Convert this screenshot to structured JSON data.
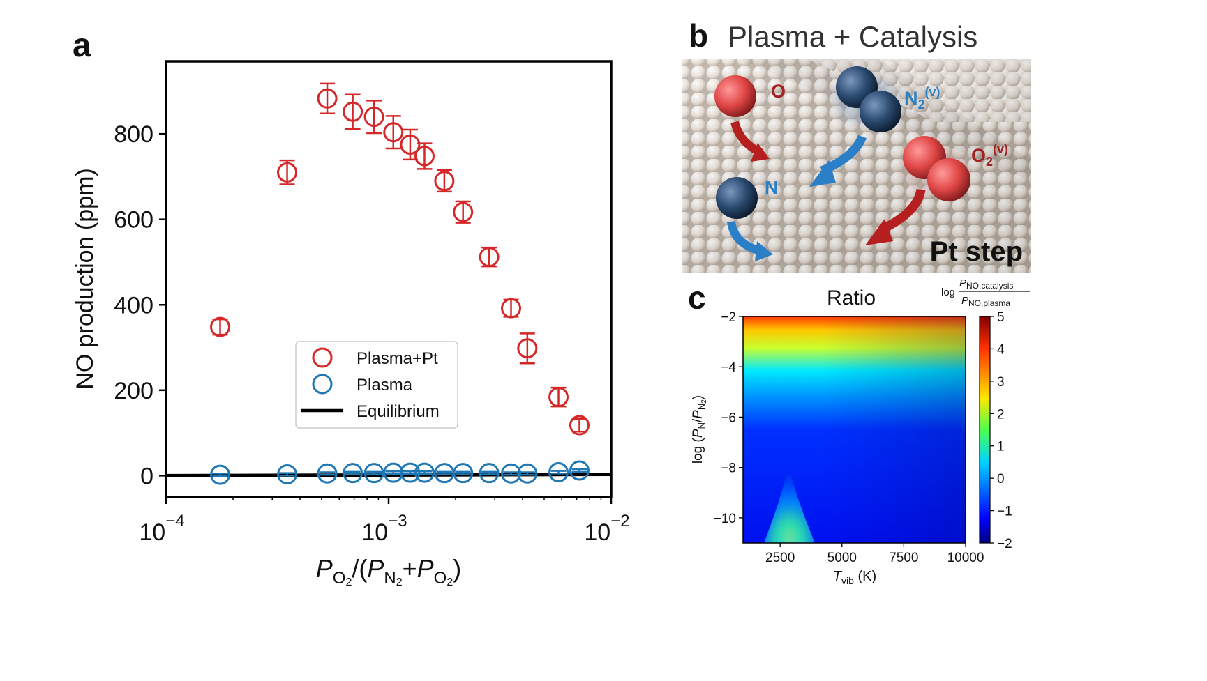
{
  "figure": {
    "panels": {
      "a": "a",
      "b": "b",
      "c": "c"
    }
  },
  "chart_data": [
    {
      "panel": "a",
      "type": "scatter",
      "xscale": "log",
      "xlim": [
        0.0001,
        0.01
      ],
      "ylim": [
        -50,
        970
      ],
      "xticks": [
        {
          "value": 0.0001,
          "base": "10",
          "exp": "−4"
        },
        {
          "value": 0.001,
          "base": "10",
          "exp": "−3"
        },
        {
          "value": 0.01,
          "base": "10",
          "exp": "−2"
        }
      ],
      "yticks": [
        0,
        200,
        400,
        600,
        800
      ],
      "ylabel": "NO production (ppm)",
      "xlabel": {
        "P": "P",
        "O2": "O",
        "sub2": "2",
        "N2": "N",
        "open": "/(",
        "plus": "+",
        "close": ")"
      },
      "legend": {
        "placement": "lower-center",
        "entries": [
          "Plasma+Pt",
          "Plasma",
          "Equilibrium"
        ]
      },
      "colors": {
        "plasma_pt": "#d62728",
        "plasma": "#1f77b4",
        "equilibrium": "#000000"
      },
      "series": [
        {
          "name": "Plasma+Pt",
          "x": [
            0.000175,
            0.00035,
            0.00053,
            0.00069,
            0.00086,
            0.00105,
            0.00125,
            0.00145,
            0.00178,
            0.00216,
            0.00283,
            0.00355,
            0.0042,
            0.0058,
            0.0072
          ],
          "y": [
            348,
            710,
            883,
            852,
            840,
            804,
            775,
            748,
            690,
            617,
            512,
            392,
            298,
            184,
            118
          ],
          "err": [
            18,
            28,
            35,
            40,
            38,
            38,
            35,
            30,
            25,
            25,
            22,
            20,
            35,
            22,
            15
          ]
        },
        {
          "name": "Plasma",
          "x": [
            0.000175,
            0.00035,
            0.00053,
            0.00069,
            0.00086,
            0.00105,
            0.00125,
            0.00145,
            0.00178,
            0.00216,
            0.00283,
            0.00355,
            0.0042,
            0.0058,
            0.0072
          ],
          "y": [
            2,
            3,
            5,
            6,
            6,
            7,
            7,
            7,
            6,
            6,
            6,
            5,
            5,
            8,
            12
          ],
          "err": [
            3,
            3,
            3,
            3,
            3,
            3,
            3,
            3,
            3,
            3,
            3,
            3,
            3,
            3,
            3
          ]
        },
        {
          "name": "Equilibrium",
          "x": [
            0.0001,
            0.01
          ],
          "y": [
            0,
            3
          ]
        }
      ]
    },
    {
      "panel": "c",
      "type": "heatmap",
      "title": "Ratio",
      "xlim": [
        1000,
        10000
      ],
      "ylim": [
        -11,
        -2
      ],
      "xticks": [
        2500,
        5000,
        7500,
        10000
      ],
      "yticks": [
        -2,
        -4,
        -6,
        -8,
        -10
      ],
      "xlabel": {
        "T": "T",
        "sub": "vib",
        "unit": " (K)"
      },
      "ylabel": {
        "pre": "log (",
        "P": "P",
        "N": "N",
        "slash": "/",
        "N2": "N",
        "sub2": "2",
        "close": ")"
      },
      "colorbar": {
        "range": [
          -2,
          5
        ],
        "ticks": [
          5,
          4,
          3,
          2,
          1,
          0,
          -1,
          -2
        ],
        "label": {
          "log": "log",
          "num_P": "P",
          "num_sub": "NO,catalysis",
          "den_P": "P",
          "den_sub": "NO,plasma"
        }
      },
      "features": [
        {
          "x": 1000,
          "y": -2,
          "value": 5
        },
        {
          "x": 3000,
          "y": -11,
          "value": 2
        }
      ]
    }
  ],
  "illustration": {
    "title_letter": "b",
    "title": "Plasma + Catalysis",
    "labels": {
      "O": "O",
      "N2": "N",
      "N2_sub": "2",
      "N2_sup": "(v)",
      "O2": "O",
      "O2_sub": "2",
      "O2_sup": "(v)",
      "N": "N",
      "surface": "Pt step"
    },
    "colors": {
      "oxygen": "#e34b4b",
      "nitrogen": "#1f3b5c",
      "arrow_red": "#b51f1f",
      "arrow_blue": "#2b7fc6",
      "surface": "#e6ddd3"
    }
  }
}
